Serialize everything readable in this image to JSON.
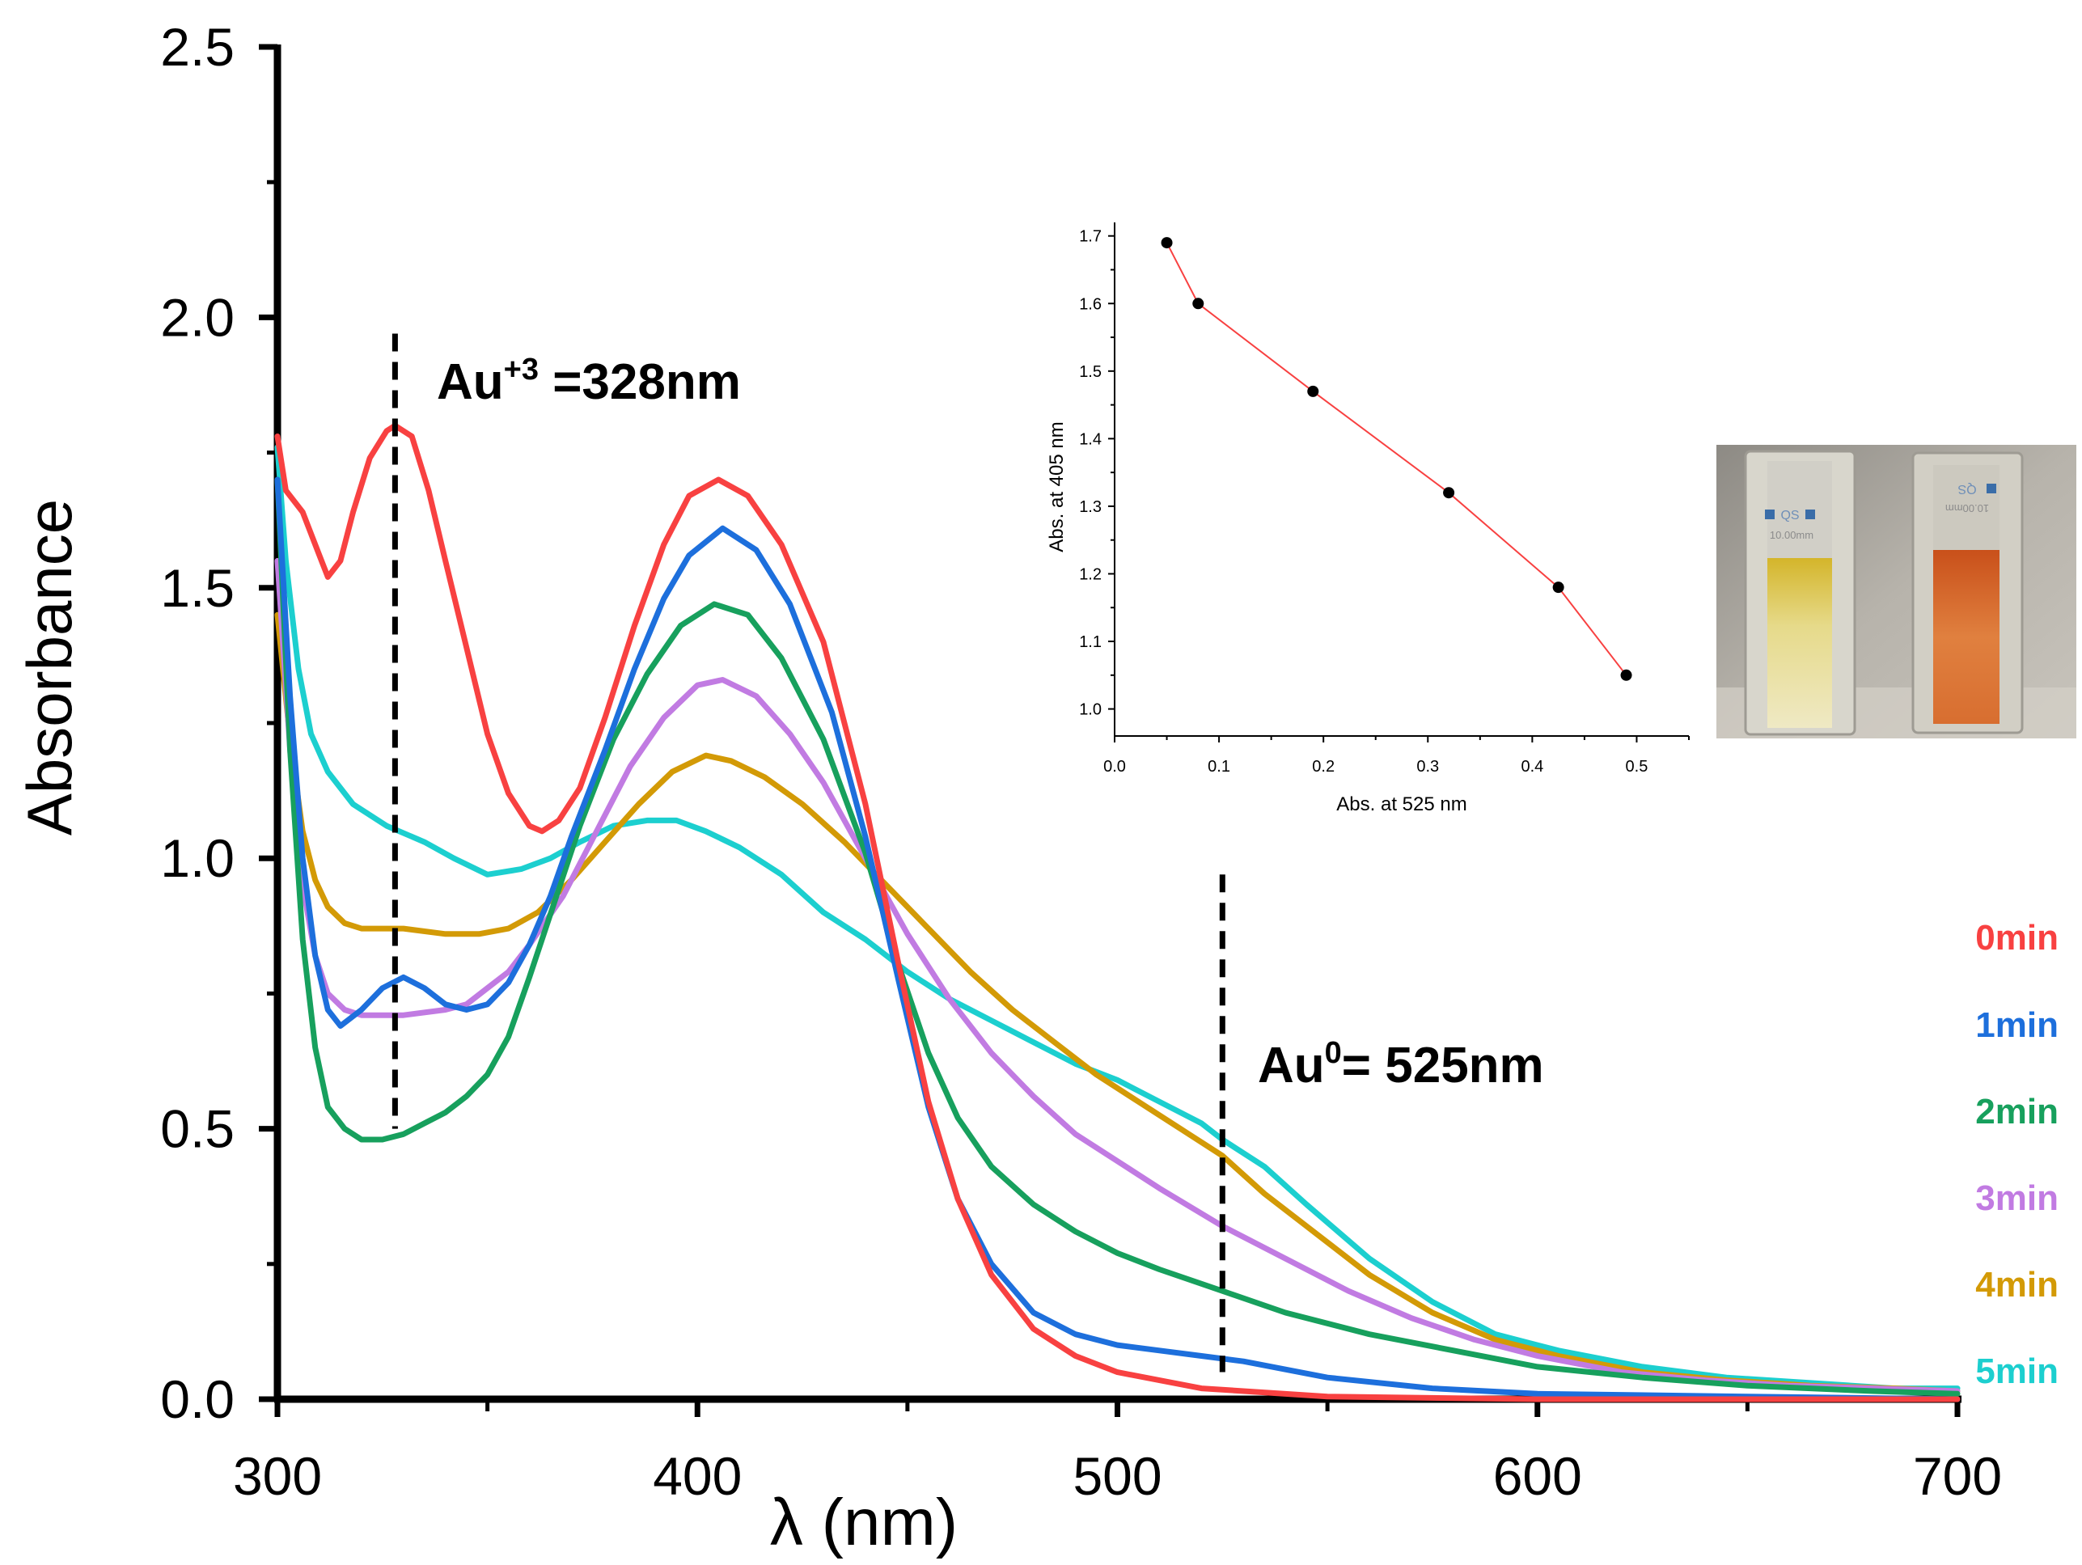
{
  "chart_data": [
    {
      "type": "line",
      "xlabel": "λ (nm)",
      "ylabel": "Absorbance",
      "xlim": [
        300,
        700
      ],
      "ylim": [
        0,
        2.5
      ],
      "xticks": [
        "300",
        "400",
        "500",
        "600",
        "700"
      ],
      "yticks": [
        "0.0",
        "0.5",
        "1.0",
        "1.5",
        "2.0",
        "2.5"
      ],
      "grid": false,
      "legend_position": "right",
      "series": [
        {
          "name": "0min",
          "color": "#f84141",
          "points": [
            [
              300,
              1.78
            ],
            [
              302,
              1.68
            ],
            [
              306,
              1.64
            ],
            [
              310,
              1.56
            ],
            [
              312,
              1.52
            ],
            [
              315,
              1.55
            ],
            [
              318,
              1.64
            ],
            [
              322,
              1.74
            ],
            [
              326,
              1.79
            ],
            [
              328,
              1.8
            ],
            [
              332,
              1.78
            ],
            [
              336,
              1.68
            ],
            [
              340,
              1.55
            ],
            [
              345,
              1.39
            ],
            [
              350,
              1.23
            ],
            [
              355,
              1.12
            ],
            [
              360,
              1.06
            ],
            [
              363,
              1.05
            ],
            [
              367,
              1.07
            ],
            [
              372,
              1.13
            ],
            [
              378,
              1.26
            ],
            [
              385,
              1.43
            ],
            [
              392,
              1.58
            ],
            [
              398,
              1.67
            ],
            [
              405,
              1.7
            ],
            [
              412,
              1.67
            ],
            [
              420,
              1.58
            ],
            [
              430,
              1.4
            ],
            [
              440,
              1.1
            ],
            [
              448,
              0.8
            ],
            [
              455,
              0.55
            ],
            [
              462,
              0.37
            ],
            [
              470,
              0.23
            ],
            [
              480,
              0.13
            ],
            [
              490,
              0.08
            ],
            [
              500,
              0.05
            ],
            [
              520,
              0.02
            ],
            [
              550,
              0.005
            ],
            [
              600,
              0.0
            ],
            [
              650,
              0.0
            ],
            [
              700,
              0.0
            ]
          ]
        },
        {
          "name": "1min",
          "color": "#1d6fdc",
          "points": [
            [
              300,
              1.7
            ],
            [
              303,
              1.3
            ],
            [
              306,
              1.0
            ],
            [
              309,
              0.82
            ],
            [
              312,
              0.72
            ],
            [
              315,
              0.69
            ],
            [
              320,
              0.72
            ],
            [
              325,
              0.76
            ],
            [
              330,
              0.78
            ],
            [
              335,
              0.76
            ],
            [
              340,
              0.73
            ],
            [
              345,
              0.72
            ],
            [
              350,
              0.73
            ],
            [
              355,
              0.77
            ],
            [
              360,
              0.84
            ],
            [
              365,
              0.93
            ],
            [
              370,
              1.04
            ],
            [
              378,
              1.2
            ],
            [
              385,
              1.35
            ],
            [
              392,
              1.48
            ],
            [
              398,
              1.56
            ],
            [
              406,
              1.61
            ],
            [
              414,
              1.57
            ],
            [
              422,
              1.47
            ],
            [
              432,
              1.27
            ],
            [
              440,
              1.04
            ],
            [
              448,
              0.77
            ],
            [
              455,
              0.54
            ],
            [
              462,
              0.37
            ],
            [
              470,
              0.25
            ],
            [
              480,
              0.16
            ],
            [
              490,
              0.12
            ],
            [
              500,
              0.1
            ],
            [
              510,
              0.09
            ],
            [
              520,
              0.08
            ],
            [
              530,
              0.07
            ],
            [
              550,
              0.04
            ],
            [
              575,
              0.02
            ],
            [
              600,
              0.01
            ],
            [
              650,
              0.005
            ],
            [
              700,
              0.0
            ]
          ]
        },
        {
          "name": "2min",
          "color": "#17a05d",
          "points": [
            [
              300,
              1.7
            ],
            [
              303,
              1.2
            ],
            [
              306,
              0.85
            ],
            [
              309,
              0.65
            ],
            [
              312,
              0.54
            ],
            [
              316,
              0.5
            ],
            [
              320,
              0.48
            ],
            [
              325,
              0.48
            ],
            [
              330,
              0.49
            ],
            [
              335,
              0.51
            ],
            [
              340,
              0.53
            ],
            [
              345,
              0.56
            ],
            [
              350,
              0.6
            ],
            [
              355,
              0.67
            ],
            [
              360,
              0.78
            ],
            [
              366,
              0.92
            ],
            [
              372,
              1.06
            ],
            [
              380,
              1.22
            ],
            [
              388,
              1.34
            ],
            [
              396,
              1.43
            ],
            [
              404,
              1.47
            ],
            [
              412,
              1.45
            ],
            [
              420,
              1.37
            ],
            [
              430,
              1.22
            ],
            [
              440,
              1.01
            ],
            [
              448,
              0.8
            ],
            [
              455,
              0.64
            ],
            [
              462,
              0.52
            ],
            [
              470,
              0.43
            ],
            [
              480,
              0.36
            ],
            [
              490,
              0.31
            ],
            [
              500,
              0.27
            ],
            [
              510,
              0.24
            ],
            [
              525,
              0.2
            ],
            [
              540,
              0.16
            ],
            [
              560,
              0.12
            ],
            [
              580,
              0.09
            ],
            [
              600,
              0.06
            ],
            [
              625,
              0.04
            ],
            [
              650,
              0.025
            ],
            [
              680,
              0.015
            ],
            [
              700,
              0.01
            ]
          ]
        },
        {
          "name": "3min",
          "color": "#c17be2",
          "points": [
            [
              300,
              1.55
            ],
            [
              303,
              1.2
            ],
            [
              306,
              0.95
            ],
            [
              309,
              0.82
            ],
            [
              312,
              0.75
            ],
            [
              316,
              0.72
            ],
            [
              320,
              0.71
            ],
            [
              330,
              0.71
            ],
            [
              340,
              0.72
            ],
            [
              345,
              0.73
            ],
            [
              350,
              0.76
            ],
            [
              355,
              0.79
            ],
            [
              360,
              0.84
            ],
            [
              368,
              0.93
            ],
            [
              376,
              1.05
            ],
            [
              384,
              1.17
            ],
            [
              392,
              1.26
            ],
            [
              400,
              1.32
            ],
            [
              406,
              1.33
            ],
            [
              414,
              1.3
            ],
            [
              422,
              1.23
            ],
            [
              430,
              1.14
            ],
            [
              440,
              1.0
            ],
            [
              450,
              0.86
            ],
            [
              460,
              0.74
            ],
            [
              470,
              0.64
            ],
            [
              480,
              0.56
            ],
            [
              490,
              0.49
            ],
            [
              500,
              0.44
            ],
            [
              510,
              0.39
            ],
            [
              525,
              0.32
            ],
            [
              540,
              0.26
            ],
            [
              555,
              0.2
            ],
            [
              570,
              0.15
            ],
            [
              585,
              0.11
            ],
            [
              600,
              0.08
            ],
            [
              620,
              0.05
            ],
            [
              640,
              0.035
            ],
            [
              660,
              0.025
            ],
            [
              680,
              0.02
            ],
            [
              700,
              0.015
            ]
          ]
        },
        {
          "name": "4min",
          "color": "#d39a06",
          "points": [
            [
              300,
              1.45
            ],
            [
              303,
              1.22
            ],
            [
              306,
              1.05
            ],
            [
              309,
              0.96
            ],
            [
              312,
              0.91
            ],
            [
              316,
              0.88
            ],
            [
              320,
              0.87
            ],
            [
              330,
              0.87
            ],
            [
              340,
              0.86
            ],
            [
              348,
              0.86
            ],
            [
              355,
              0.87
            ],
            [
              362,
              0.9
            ],
            [
              370,
              0.96
            ],
            [
              378,
              1.03
            ],
            [
              386,
              1.1
            ],
            [
              394,
              1.16
            ],
            [
              402,
              1.19
            ],
            [
              408,
              1.18
            ],
            [
              416,
              1.15
            ],
            [
              425,
              1.1
            ],
            [
              435,
              1.03
            ],
            [
              445,
              0.95
            ],
            [
              455,
              0.87
            ],
            [
              465,
              0.79
            ],
            [
              475,
              0.72
            ],
            [
              485,
              0.66
            ],
            [
              495,
              0.6
            ],
            [
              505,
              0.55
            ],
            [
              515,
              0.5
            ],
            [
              525,
              0.45
            ],
            [
              535,
              0.38
            ],
            [
              545,
              0.32
            ],
            [
              560,
              0.23
            ],
            [
              575,
              0.16
            ],
            [
              590,
              0.11
            ],
            [
              605,
              0.08
            ],
            [
              625,
              0.05
            ],
            [
              645,
              0.035
            ],
            [
              665,
              0.025
            ],
            [
              685,
              0.02
            ],
            [
              700,
              0.015
            ]
          ]
        },
        {
          "name": "5min",
          "color": "#1ccfcf",
          "points": [
            [
              300,
              1.76
            ],
            [
              302,
              1.55
            ],
            [
              305,
              1.35
            ],
            [
              308,
              1.23
            ],
            [
              312,
              1.16
            ],
            [
              318,
              1.1
            ],
            [
              326,
              1.06
            ],
            [
              335,
              1.03
            ],
            [
              342,
              1.0
            ],
            [
              350,
              0.97
            ],
            [
              358,
              0.98
            ],
            [
              365,
              1.0
            ],
            [
              372,
              1.03
            ],
            [
              380,
              1.06
            ],
            [
              388,
              1.07
            ],
            [
              395,
              1.07
            ],
            [
              402,
              1.05
            ],
            [
              410,
              1.02
            ],
            [
              420,
              0.97
            ],
            [
              430,
              0.9
            ],
            [
              440,
              0.85
            ],
            [
              450,
              0.79
            ],
            [
              460,
              0.74
            ],
            [
              470,
              0.7
            ],
            [
              480,
              0.66
            ],
            [
              490,
              0.62
            ],
            [
              500,
              0.59
            ],
            [
              510,
              0.55
            ],
            [
              520,
              0.51
            ],
            [
              525,
              0.48
            ],
            [
              535,
              0.43
            ],
            [
              545,
              0.36
            ],
            [
              560,
              0.26
            ],
            [
              575,
              0.18
            ],
            [
              590,
              0.12
            ],
            [
              605,
              0.09
            ],
            [
              625,
              0.06
            ],
            [
              645,
              0.04
            ],
            [
              665,
              0.03
            ],
            [
              685,
              0.02
            ],
            [
              700,
              0.02
            ]
          ]
        }
      ],
      "annotations": [
        {
          "text": "Au",
          "sup": "+3",
          "tail": " =328nm",
          "x": 328,
          "ymin": 0.5,
          "ymax": 1.97
        },
        {
          "text": "Au",
          "sup": "0",
          "tail": "= 525nm",
          "x": 525,
          "ymin": 0.05,
          "ymax": 0.97
        }
      ]
    },
    {
      "type": "line",
      "title": "",
      "xlabel": "Abs. at 525 nm",
      "ylabel": "Abs. at 405 nm",
      "xlim": [
        0.0,
        0.55
      ],
      "ylim": [
        0.96,
        1.72
      ],
      "xticks": [
        "0.0",
        "0.1",
        "0.2",
        "0.3",
        "0.4",
        "0.5"
      ],
      "yticks": [
        "1.0",
        "1.1",
        "1.2",
        "1.3",
        "1.4",
        "1.5",
        "1.6",
        "1.7"
      ],
      "line_color": "#f84141",
      "marker_color": "#000000",
      "x": [
        0.05,
        0.08,
        0.19,
        0.32,
        0.425,
        0.49
      ],
      "y": [
        1.69,
        1.6,
        1.47,
        1.32,
        1.18,
        1.05
      ]
    }
  ],
  "photo": {
    "left_cuvette_label": "QS",
    "left_cuvette_sub": "10.00mm",
    "right_cuvette_label": "QS",
    "right_cuvette_sub": "10.00mm"
  }
}
